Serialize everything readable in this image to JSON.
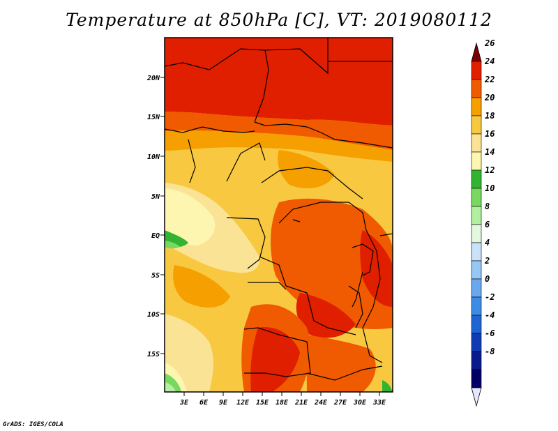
{
  "title": "Temperature at 850hPa [C], VT: 2019080112",
  "credit": "GrADS: IGES/COLA",
  "map": {
    "lat_labels": [
      "20N",
      "15N",
      "10N",
      "5N",
      "EQ",
      "5S",
      "10S",
      "15S"
    ],
    "lon_labels": [
      "3E",
      "6E",
      "9E",
      "12E",
      "15E",
      "18E",
      "21E",
      "24E",
      "27E",
      "30E",
      "33E"
    ]
  },
  "colorbar": {
    "labels": [
      "26",
      "24",
      "22",
      "20",
      "18",
      "16",
      "14",
      "12",
      "10",
      "8",
      "6",
      "4",
      "2",
      "0",
      "-2",
      "-4",
      "-6",
      "-8"
    ],
    "colors": [
      "#7d0000",
      "#e01e00",
      "#f05a00",
      "#f5a000",
      "#f8c840",
      "#fbe396",
      "#fdf6b0",
      "#32b432",
      "#78d860",
      "#b2efa0",
      "#e4f7e0",
      "#c8e2fa",
      "#96c8f5",
      "#6aa8ee",
      "#3c8ce6",
      "#1e64d2",
      "#0f3cb4",
      "#0a1a8c",
      "#000064",
      "#e6e6ff"
    ]
  }
}
